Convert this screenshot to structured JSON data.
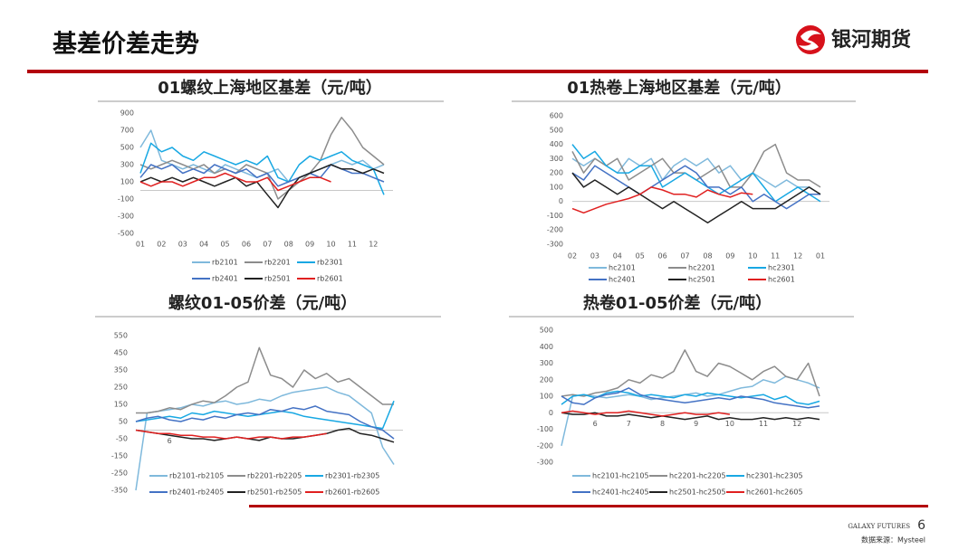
{
  "header": {
    "title": "基差价差走势",
    "brand": "银河期货"
  },
  "footer": {
    "brand_en": "GALAXY FUTURES",
    "page": "6",
    "source": "数据来源：Mysteel"
  },
  "chart_data": [
    {
      "type": "line",
      "title": "01螺纹上海地区基差（元/吨）",
      "categories": [
        "01",
        null,
        "02",
        null,
        "03",
        null,
        "04",
        null,
        "05",
        null,
        "06",
        null,
        "07",
        null,
        "08",
        null,
        "09",
        null,
        "10",
        null,
        "11",
        null,
        "12",
        null
      ],
      "ylim": [
        -500,
        900
      ],
      "yticks": [
        900,
        700,
        500,
        300,
        100,
        -100,
        -300,
        -500
      ],
      "xaxis_at_zero": false,
      "series": [
        {
          "name": "rb2101",
          "color": "#7fb9dc",
          "values": [
            500,
            700,
            350,
            300,
            250,
            300,
            250,
            200,
            300,
            250,
            200,
            150,
            200,
            250,
            100,
            150,
            200,
            250,
            300,
            350,
            300,
            350,
            250,
            300
          ]
        },
        {
          "name": "rb2201",
          "color": "#8c8c8c",
          "values": [
            300,
            250,
            300,
            350,
            300,
            250,
            300,
            200,
            250,
            200,
            300,
            250,
            200,
            -100,
            0,
            100,
            200,
            350,
            650,
            850,
            700,
            500,
            400,
            300
          ]
        },
        {
          "name": "rb2301",
          "color": "#18a8e3",
          "values": [
            200,
            550,
            450,
            500,
            400,
            350,
            450,
            400,
            350,
            300,
            350,
            300,
            400,
            150,
            100,
            300,
            400,
            350,
            400,
            450,
            350,
            300,
            250,
            -50
          ]
        },
        {
          "name": "rb2401",
          "color": "#4472c4",
          "values": [
            150,
            300,
            250,
            300,
            200,
            250,
            200,
            300,
            250,
            200,
            250,
            150,
            200,
            50,
            100,
            150,
            200,
            150,
            300,
            250,
            200,
            200,
            150,
            100
          ]
        },
        {
          "name": "rb2501",
          "color": "#222222",
          "values": [
            100,
            150,
            100,
            150,
            100,
            150,
            100,
            50,
            100,
            150,
            50,
            100,
            -50,
            -200,
            0,
            150,
            200,
            250,
            300,
            250,
            250,
            200,
            250,
            200
          ]
        },
        {
          "name": "rb2601",
          "color": "#e02020",
          "values": [
            100,
            50,
            100,
            100,
            50,
            100,
            150,
            150,
            200,
            150,
            100,
            100,
            150,
            0,
            50,
            100,
            150,
            150,
            100,
            null,
            null,
            null,
            null,
            null
          ]
        }
      ]
    },
    {
      "type": "line",
      "title": "01热卷上海地区基差（元/吨）",
      "categories": [
        "02",
        null,
        "03",
        null,
        "04",
        null,
        "05",
        null,
        "06",
        null,
        "07",
        null,
        "08",
        null,
        "09",
        null,
        "10",
        null,
        "11",
        null,
        "12",
        null,
        "01"
      ],
      "ylim": [
        -300,
        600
      ],
      "yticks": [
        600,
        500,
        400,
        300,
        200,
        100,
        0,
        -100,
        -200,
        -300
      ],
      "xaxis_at_zero": false,
      "series": [
        {
          "name": "hc2101",
          "color": "#7fb9dc",
          "values": [
            300,
            250,
            300,
            250,
            200,
            300,
            250,
            300,
            150,
            250,
            300,
            250,
            300,
            200,
            250,
            150,
            200,
            150,
            100,
            150,
            100,
            100,
            50
          ]
        },
        {
          "name": "hc2201",
          "color": "#8c8c8c",
          "values": [
            350,
            200,
            300,
            250,
            300,
            150,
            200,
            250,
            300,
            200,
            200,
            150,
            200,
            250,
            100,
            100,
            200,
            350,
            400,
            200,
            150,
            150,
            100
          ]
        },
        {
          "name": "hc2301",
          "color": "#18a8e3",
          "values": [
            400,
            300,
            350,
            250,
            200,
            200,
            250,
            250,
            100,
            150,
            200,
            150,
            100,
            50,
            100,
            150,
            200,
            100,
            0,
            50,
            100,
            50,
            0
          ]
        },
        {
          "name": "hc2401",
          "color": "#4472c4",
          "values": [
            200,
            150,
            250,
            200,
            150,
            100,
            50,
            100,
            150,
            200,
            250,
            200,
            100,
            100,
            50,
            100,
            0,
            50,
            0,
            -50,
            0,
            50,
            50
          ]
        },
        {
          "name": "hc2501",
          "color": "#222222",
          "values": [
            200,
            100,
            150,
            100,
            50,
            100,
            50,
            0,
            -50,
            0,
            -50,
            -100,
            -150,
            -100,
            -50,
            0,
            -50,
            -50,
            -50,
            0,
            50,
            100,
            50
          ]
        },
        {
          "name": "hc2601",
          "color": "#e02020",
          "values": [
            -50,
            -80,
            -50,
            -20,
            0,
            20,
            50,
            100,
            80,
            50,
            50,
            30,
            80,
            50,
            30,
            60,
            50,
            null,
            null,
            null,
            null,
            null,
            null
          ]
        }
      ]
    },
    {
      "type": "line",
      "title": "螺纹01-05价差（元/吨）",
      "categories": [
        null,
        null,
        null,
        "6",
        null,
        null,
        null,
        null,
        null,
        null,
        null,
        null,
        null,
        null,
        null,
        null,
        null,
        null,
        null,
        null,
        null,
        null,
        null,
        null
      ],
      "ylim": [
        -350,
        550
      ],
      "yticks": [
        550,
        450,
        350,
        250,
        150,
        50,
        -50,
        -150,
        -250,
        -350
      ],
      "xaxis_at_zero": true,
      "series": [
        {
          "name": "rb2101-rb2105",
          "color": "#7fb9dc",
          "values": [
            -350,
            100,
            110,
            120,
            130,
            150,
            140,
            160,
            170,
            150,
            160,
            180,
            170,
            200,
            220,
            230,
            240,
            250,
            220,
            200,
            150,
            100,
            -100,
            -200
          ]
        },
        {
          "name": "rb2201-rb2205",
          "color": "#8c8c8c",
          "values": [
            100,
            100,
            110,
            130,
            120,
            150,
            170,
            160,
            200,
            250,
            280,
            480,
            320,
            300,
            250,
            350,
            300,
            330,
            280,
            300,
            250,
            200,
            150,
            150
          ]
        },
        {
          "name": "rb2301-rb2305",
          "color": "#18a8e3",
          "values": [
            50,
            60,
            70,
            80,
            70,
            100,
            90,
            110,
            100,
            90,
            80,
            90,
            100,
            110,
            100,
            80,
            70,
            60,
            50,
            40,
            30,
            20,
            10,
            170
          ]
        },
        {
          "name": "rb2401-rb2405",
          "color": "#4472c4",
          "values": [
            50,
            70,
            80,
            60,
            50,
            70,
            60,
            80,
            70,
            90,
            100,
            90,
            120,
            110,
            130,
            120,
            140,
            110,
            100,
            90,
            50,
            20,
            0,
            -50
          ]
        },
        {
          "name": "rb2501-rb2505",
          "color": "#222222",
          "values": [
            0,
            -10,
            -20,
            -30,
            -40,
            -50,
            -50,
            -60,
            -50,
            -40,
            -50,
            -60,
            -40,
            -50,
            -50,
            -40,
            -30,
            -20,
            0,
            10,
            -20,
            -30,
            -50,
            -70
          ]
        },
        {
          "name": "rb2601-rb2605",
          "color": "#e02020",
          "values": [
            0,
            -10,
            -20,
            -20,
            -30,
            -30,
            -40,
            -40,
            -50,
            -40,
            -50,
            -40,
            -40,
            -50,
            -40,
            -40,
            -30,
            -20,
            null,
            null,
            null,
            null,
            null,
            null
          ]
        }
      ]
    },
    {
      "type": "line",
      "title": "热卷01-05价差（元/吨）",
      "categories": [
        null,
        null,
        null,
        "6",
        null,
        null,
        "7",
        null,
        null,
        "8",
        null,
        null,
        "9",
        null,
        null,
        "10",
        null,
        null,
        "11",
        null,
        null,
        "12",
        null,
        null
      ],
      "ylim": [
        -300,
        500
      ],
      "yticks": [
        500,
        400,
        300,
        200,
        100,
        0,
        -100,
        -200,
        -300
      ],
      "xaxis_at_zero": true,
      "series": [
        {
          "name": "hc2101-hc2105",
          "color": "#7fb9dc",
          "values": [
            -200,
            100,
            110,
            100,
            90,
            100,
            110,
            100,
            80,
            90,
            100,
            110,
            120,
            100,
            110,
            130,
            150,
            160,
            200,
            180,
            220,
            200,
            180,
            150
          ]
        },
        {
          "name": "hc2201-hc2205",
          "color": "#8c8c8c",
          "values": [
            100,
            110,
            100,
            120,
            130,
            150,
            200,
            180,
            230,
            210,
            250,
            380,
            250,
            220,
            300,
            280,
            240,
            200,
            250,
            280,
            220,
            200,
            300,
            100
          ]
        },
        {
          "name": "hc2301-hc2305",
          "color": "#18a8e3",
          "values": [
            50,
            100,
            110,
            90,
            120,
            130,
            120,
            100,
            110,
            100,
            90,
            110,
            100,
            120,
            110,
            100,
            90,
            100,
            110,
            80,
            100,
            60,
            50,
            70
          ]
        },
        {
          "name": "hc2401-hc2405",
          "color": "#4472c4",
          "values": [
            100,
            60,
            50,
            90,
            110,
            120,
            150,
            110,
            90,
            80,
            70,
            60,
            70,
            80,
            90,
            80,
            100,
            90,
            80,
            60,
            50,
            40,
            30,
            40
          ]
        },
        {
          "name": "hc2501-hc2505",
          "color": "#222222",
          "values": [
            0,
            -10,
            -10,
            0,
            -20,
            -20,
            -10,
            -20,
            -30,
            -20,
            -30,
            -40,
            -30,
            -20,
            -40,
            -30,
            -40,
            -40,
            -30,
            -40,
            -30,
            -40,
            -30,
            -40
          ]
        },
        {
          "name": "hc2601-hc2605",
          "color": "#e02020",
          "values": [
            0,
            10,
            0,
            -10,
            0,
            0,
            10,
            0,
            -10,
            -20,
            -10,
            0,
            -10,
            -10,
            0,
            -10,
            null,
            null,
            null,
            null,
            null,
            null,
            null,
            null
          ]
        }
      ]
    }
  ]
}
